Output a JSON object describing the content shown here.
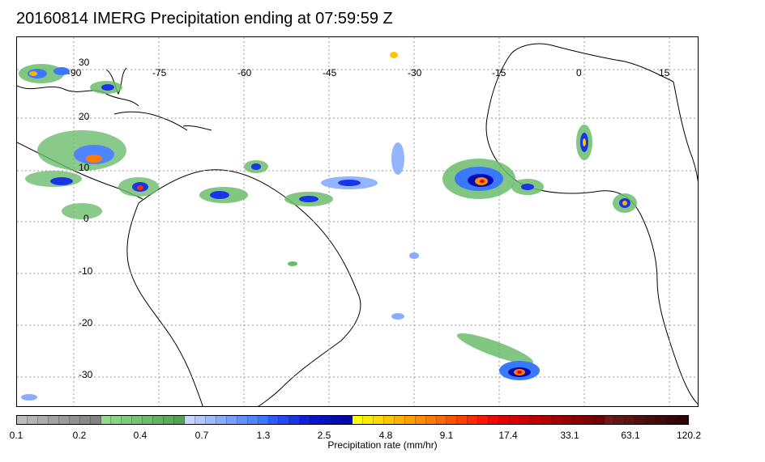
{
  "title": "20160814 IMERG Precipitation ending at 07:59:59 Z",
  "map": {
    "lon_labels": [
      "-90",
      "-75",
      "-60",
      "-45",
      "-30",
      "-15",
      "0",
      "15"
    ],
    "lat_labels": [
      "30",
      "20",
      "10",
      "0",
      "-10",
      "-20",
      "-30"
    ],
    "gridline_color": "#9a9a9a",
    "coastline_color": "#000000"
  },
  "colorbar": {
    "label": "Precipitation rate (mm/hr)",
    "ticks": [
      "0.1",
      "0.2",
      "0.4",
      "0.7",
      "1.3",
      "2.5",
      "4.8",
      "9.1",
      "17.4",
      "33.1",
      "63.1",
      "120.2"
    ],
    "colors": [
      "#bdbdbd",
      "#b4b4b4",
      "#acacac",
      "#a3a3a3",
      "#9b9b9b",
      "#929292",
      "#8a8a8a",
      "#828282",
      "#8fdc8f",
      "#86d486",
      "#7dcc7d",
      "#74c474",
      "#6bbc6b",
      "#62b462",
      "#59ac59",
      "#50a450",
      "#c6d3ff",
      "#b2c6ff",
      "#9eb9ff",
      "#8aacff",
      "#769fff",
      "#6292ff",
      "#4e85ff",
      "#3a78ff",
      "#2f5bff",
      "#2448f2",
      "#1a35e6",
      "#0f22d9",
      "#0a14cc",
      "#0510bf",
      "#000cb3",
      "#0008a6",
      "#ffff00",
      "#ffec00",
      "#ffd900",
      "#ffc600",
      "#ffb300",
      "#ffa000",
      "#ff8d00",
      "#ff7a00",
      "#ff6600",
      "#ff5200",
      "#ff3e00",
      "#ff2a00",
      "#ff1600",
      "#f20a00",
      "#e60000",
      "#d90000",
      "#cc0000",
      "#bf0000",
      "#b30000",
      "#a60000",
      "#990000",
      "#8c0000",
      "#800000",
      "#730000",
      "#6e1a1a",
      "#651616",
      "#5c1313",
      "#531010",
      "#4a0d0d",
      "#410a0a",
      "#380707",
      "#2f0404"
    ]
  }
}
